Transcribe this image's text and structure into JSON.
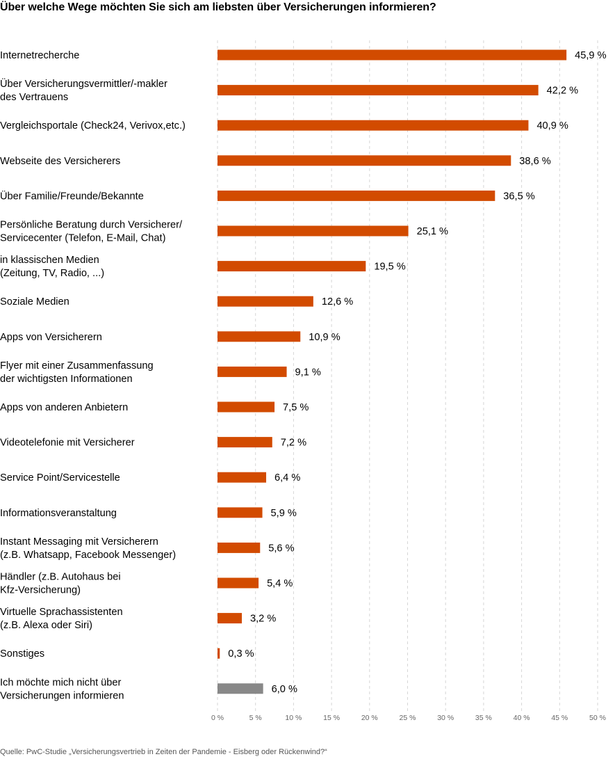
{
  "title": "Über welche Wege möchten Sie sich am liebsten über Versicherungen informieren?",
  "source": "Quelle: PwC-Studie „Versicherungsvertrieb in Zeiten der Pandemie - Eisberg oder Rückenwind?“",
  "colors": {
    "bar": "#d24b00",
    "bar_muted": "#888888"
  },
  "chart_data": {
    "type": "bar",
    "orientation": "horizontal",
    "title": "Über welche Wege möchten Sie sich am liebsten über Versicherungen informieren?",
    "xlim": [
      0,
      50
    ],
    "ticks": [
      0,
      5,
      10,
      15,
      20,
      25,
      30,
      35,
      40,
      45,
      50
    ],
    "tick_labels": [
      "0 %",
      "5 %",
      "10 %",
      "15 %",
      "20 %",
      "25 %",
      "30 %",
      "35 %",
      "40 %",
      "45 %",
      "50 %"
    ],
    "grid": true,
    "categories": [
      [
        "Internetrecherche"
      ],
      [
        "Über Versicherungsvermittler/-makler",
        "des Vertrauens"
      ],
      [
        "Vergleichsportale (Check24, Verivox,etc.)"
      ],
      [
        "Webseite des Versicherers"
      ],
      [
        "Über Familie/Freunde/Bekannte"
      ],
      [
        "Persönliche Beratung durch Versicherer/",
        "Servicecenter (Telefon, E-Mail, Chat)"
      ],
      [
        "in klassischen Medien",
        "(Zeitung, TV, Radio, ...)"
      ],
      [
        "Soziale Medien"
      ],
      [
        "Apps von Versicherern"
      ],
      [
        "Flyer mit einer Zusammenfassung",
        "der wichtigsten Informationen"
      ],
      [
        "Apps von anderen Anbietern"
      ],
      [
        "Videotelefonie mit Versicherer"
      ],
      [
        "Service Point/Servicestelle"
      ],
      [
        "Informationsveranstaltung"
      ],
      [
        "Instant Messaging mit Versicherern",
        "(z.B. Whatsapp, Facebook Messenger)"
      ],
      [
        "Händler (z.B. Autohaus bei",
        "Kfz-Versicherung)"
      ],
      [
        "Virtuelle Sprachassistenten",
        "(z.B. Alexa oder Siri)"
      ],
      [
        "Sonstiges"
      ],
      [
        "Ich möchte mich nicht über",
        "Versicherungen informieren"
      ]
    ],
    "values": [
      45.9,
      42.2,
      40.9,
      38.6,
      36.5,
      25.1,
      19.5,
      12.6,
      10.9,
      9.1,
      7.5,
      7.2,
      6.4,
      5.9,
      5.6,
      5.4,
      3.2,
      0.3,
      6.0
    ],
    "value_labels": [
      "45,9 %",
      "42,2 %",
      "40,9 %",
      "38,6 %",
      "36,5 %",
      "25,1 %",
      "19,5 %",
      "12,6 %",
      "10,9 %",
      "9,1 %",
      "7,5 %",
      "7,2 %",
      "6,4 %",
      "5,9 %",
      "5,6 %",
      "5,4 %",
      "3,2 %",
      "0,3 %",
      "6,0 %"
    ],
    "muted": [
      false,
      false,
      false,
      false,
      false,
      false,
      false,
      false,
      false,
      false,
      false,
      false,
      false,
      false,
      false,
      false,
      false,
      false,
      true
    ]
  }
}
